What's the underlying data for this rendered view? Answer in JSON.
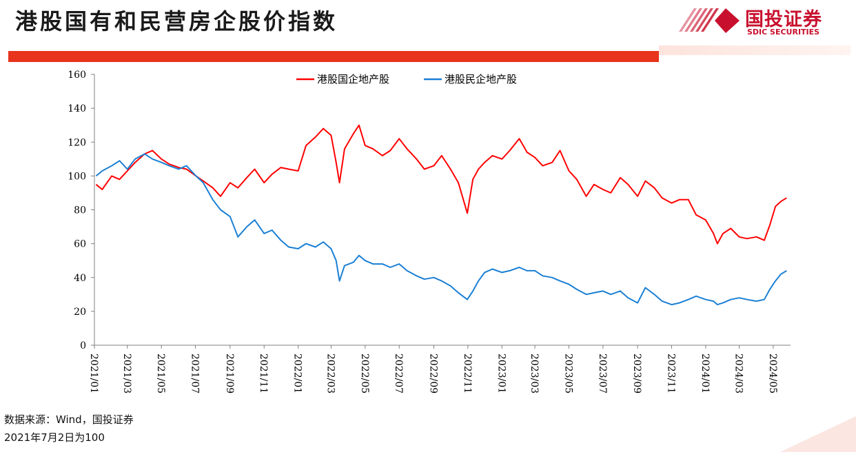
{
  "header": {
    "title": "港股国有和民营房企股价指数",
    "logo_cn": "国投证券",
    "logo_en": "SDIC SECURITIES"
  },
  "colors": {
    "accent": "#e8341c",
    "series_soe": "#ff0000",
    "series_private": "#1a7fd4",
    "logo": "#c8102e"
  },
  "footer": {
    "source": "数据来源：Wind，国投证券",
    "note": "2021年7月2日为100"
  },
  "chart_data": {
    "type": "line",
    "x_tick_labels": [
      "2021/01",
      "2021/03",
      "2021/05",
      "2021/07",
      "2021/09",
      "2021/11",
      "2022/01",
      "2022/03",
      "2022/05",
      "2022/07",
      "2022/09",
      "2022/11",
      "2023/01",
      "2023/03",
      "2023/05",
      "2023/07",
      "2023/09",
      "2023/11",
      "2024/01",
      "2024/03",
      "2024/05"
    ],
    "xlim": [
      "2021/01",
      "2024/06"
    ],
    "ylim": [
      0,
      160
    ],
    "y_ticks": [
      0,
      20,
      40,
      60,
      80,
      100,
      120,
      140,
      160
    ],
    "legend": "top-center",
    "series": [
      {
        "name": "港股国企地产股",
        "color": "#ff0000",
        "points": [
          [
            "2021/01/04",
            95
          ],
          [
            "2021/01/15",
            92
          ],
          [
            "2021/02/01",
            100
          ],
          [
            "2021/02/15",
            98
          ],
          [
            "2021/03/01",
            103
          ],
          [
            "2021/03/15",
            108
          ],
          [
            "2021/04/01",
            113
          ],
          [
            "2021/04/15",
            115
          ],
          [
            "2021/05/01",
            110
          ],
          [
            "2021/05/15",
            107
          ],
          [
            "2021/06/01",
            105
          ],
          [
            "2021/06/15",
            104
          ],
          [
            "2021/07/02",
            100
          ],
          [
            "2021/07/15",
            97
          ],
          [
            "2021/08/01",
            93
          ],
          [
            "2021/08/15",
            88
          ],
          [
            "2021/09/01",
            96
          ],
          [
            "2021/09/15",
            93
          ],
          [
            "2021/10/01",
            99
          ],
          [
            "2021/10/15",
            104
          ],
          [
            "2021/11/01",
            96
          ],
          [
            "2021/11/15",
            101
          ],
          [
            "2021/12/01",
            105
          ],
          [
            "2021/12/15",
            104
          ],
          [
            "2022/01/01",
            103
          ],
          [
            "2022/01/15",
            118
          ],
          [
            "2022/02/01",
            123
          ],
          [
            "2022/02/15",
            128
          ],
          [
            "2022/03/01",
            124
          ],
          [
            "2022/03/10",
            108
          ],
          [
            "2022/03/16",
            96
          ],
          [
            "2022/03/25",
            116
          ],
          [
            "2022/04/10",
            125
          ],
          [
            "2022/04/20",
            130
          ],
          [
            "2022/05/01",
            118
          ],
          [
            "2022/05/15",
            116
          ],
          [
            "2022/06/01",
            112
          ],
          [
            "2022/06/15",
            115
          ],
          [
            "2022/07/01",
            122
          ],
          [
            "2022/07/15",
            116
          ],
          [
            "2022/08/01",
            110
          ],
          [
            "2022/08/15",
            104
          ],
          [
            "2022/09/01",
            106
          ],
          [
            "2022/09/15",
            112
          ],
          [
            "2022/10/01",
            104
          ],
          [
            "2022/10/15",
            96
          ],
          [
            "2022/10/31",
            78
          ],
          [
            "2022/11/10",
            98
          ],
          [
            "2022/11/20",
            104
          ],
          [
            "2022/12/01",
            108
          ],
          [
            "2022/12/15",
            112
          ],
          [
            "2023/01/01",
            110
          ],
          [
            "2023/01/15",
            115
          ],
          [
            "2023/02/01",
            122
          ],
          [
            "2023/02/15",
            114
          ],
          [
            "2023/03/01",
            111
          ],
          [
            "2023/03/15",
            106
          ],
          [
            "2023/04/01",
            108
          ],
          [
            "2023/04/15",
            115
          ],
          [
            "2023/05/01",
            103
          ],
          [
            "2023/05/15",
            98
          ],
          [
            "2023/06/01",
            88
          ],
          [
            "2023/06/15",
            95
          ],
          [
            "2023/07/01",
            92
          ],
          [
            "2023/07/15",
            90
          ],
          [
            "2023/08/01",
            99
          ],
          [
            "2023/08/15",
            95
          ],
          [
            "2023/09/01",
            88
          ],
          [
            "2023/09/15",
            97
          ],
          [
            "2023/10/01",
            93
          ],
          [
            "2023/10/15",
            87
          ],
          [
            "2023/11/01",
            84
          ],
          [
            "2023/11/15",
            86
          ],
          [
            "2023/12/01",
            86
          ],
          [
            "2023/12/15",
            77
          ],
          [
            "2024/01/01",
            74
          ],
          [
            "2024/01/15",
            66
          ],
          [
            "2024/01/22",
            60
          ],
          [
            "2024/02/01",
            66
          ],
          [
            "2024/02/15",
            69
          ],
          [
            "2024/03/01",
            64
          ],
          [
            "2024/03/15",
            63
          ],
          [
            "2024/04/01",
            64
          ],
          [
            "2024/04/15",
            62
          ],
          [
            "2024/04/25",
            71
          ],
          [
            "2024/05/05",
            82
          ],
          [
            "2024/05/15",
            85
          ],
          [
            "2024/05/25",
            87
          ]
        ]
      },
      {
        "name": "港股民企地产股",
        "color": "#1a7fd4",
        "points": [
          [
            "2021/01/04",
            100
          ],
          [
            "2021/01/15",
            103
          ],
          [
            "2021/02/01",
            106
          ],
          [
            "2021/02/15",
            109
          ],
          [
            "2021/03/01",
            104
          ],
          [
            "2021/03/15",
            110
          ],
          [
            "2021/04/01",
            113
          ],
          [
            "2021/04/15",
            110
          ],
          [
            "2021/05/01",
            108
          ],
          [
            "2021/05/15",
            106
          ],
          [
            "2021/06/01",
            104
          ],
          [
            "2021/06/15",
            106
          ],
          [
            "2021/07/02",
            100
          ],
          [
            "2021/07/15",
            96
          ],
          [
            "2021/08/01",
            86
          ],
          [
            "2021/08/15",
            80
          ],
          [
            "2021/09/01",
            76
          ],
          [
            "2021/09/15",
            64
          ],
          [
            "2021/10/01",
            70
          ],
          [
            "2021/10/15",
            74
          ],
          [
            "2021/11/01",
            66
          ],
          [
            "2021/11/15",
            68
          ],
          [
            "2021/12/01",
            62
          ],
          [
            "2021/12/15",
            58
          ],
          [
            "2022/01/01",
            57
          ],
          [
            "2022/01/15",
            60
          ],
          [
            "2022/02/01",
            58
          ],
          [
            "2022/02/15",
            61
          ],
          [
            "2022/03/01",
            57
          ],
          [
            "2022/03/10",
            50
          ],
          [
            "2022/03/16",
            38
          ],
          [
            "2022/03/25",
            47
          ],
          [
            "2022/04/10",
            49
          ],
          [
            "2022/04/20",
            53
          ],
          [
            "2022/05/01",
            50
          ],
          [
            "2022/05/15",
            48
          ],
          [
            "2022/06/01",
            48
          ],
          [
            "2022/06/15",
            46
          ],
          [
            "2022/07/01",
            48
          ],
          [
            "2022/07/15",
            44
          ],
          [
            "2022/08/01",
            41
          ],
          [
            "2022/08/15",
            39
          ],
          [
            "2022/09/01",
            40
          ],
          [
            "2022/09/15",
            38
          ],
          [
            "2022/10/01",
            35
          ],
          [
            "2022/10/15",
            31
          ],
          [
            "2022/10/31",
            27
          ],
          [
            "2022/11/10",
            32
          ],
          [
            "2022/11/20",
            38
          ],
          [
            "2022/12/01",
            43
          ],
          [
            "2022/12/15",
            45
          ],
          [
            "2023/01/01",
            43
          ],
          [
            "2023/01/15",
            44
          ],
          [
            "2023/02/01",
            46
          ],
          [
            "2023/02/15",
            44
          ],
          [
            "2023/03/01",
            44
          ],
          [
            "2023/03/15",
            41
          ],
          [
            "2023/04/01",
            40
          ],
          [
            "2023/04/15",
            38
          ],
          [
            "2023/05/01",
            36
          ],
          [
            "2023/05/15",
            33
          ],
          [
            "2023/06/01",
            30
          ],
          [
            "2023/06/15",
            31
          ],
          [
            "2023/07/01",
            32
          ],
          [
            "2023/07/15",
            30
          ],
          [
            "2023/08/01",
            32
          ],
          [
            "2023/08/15",
            28
          ],
          [
            "2023/09/01",
            25
          ],
          [
            "2023/09/15",
            34
          ],
          [
            "2023/10/01",
            30
          ],
          [
            "2023/10/15",
            26
          ],
          [
            "2023/11/01",
            24
          ],
          [
            "2023/11/15",
            25
          ],
          [
            "2023/12/01",
            27
          ],
          [
            "2023/12/15",
            29
          ],
          [
            "2024/01/01",
            27
          ],
          [
            "2024/01/15",
            26
          ],
          [
            "2024/01/22",
            24
          ],
          [
            "2024/02/01",
            25
          ],
          [
            "2024/02/15",
            27
          ],
          [
            "2024/03/01",
            28
          ],
          [
            "2024/03/15",
            27
          ],
          [
            "2024/04/01",
            26
          ],
          [
            "2024/04/15",
            27
          ],
          [
            "2024/04/25",
            33
          ],
          [
            "2024/05/05",
            38
          ],
          [
            "2024/05/15",
            42
          ],
          [
            "2024/05/25",
            44
          ]
        ]
      }
    ]
  }
}
